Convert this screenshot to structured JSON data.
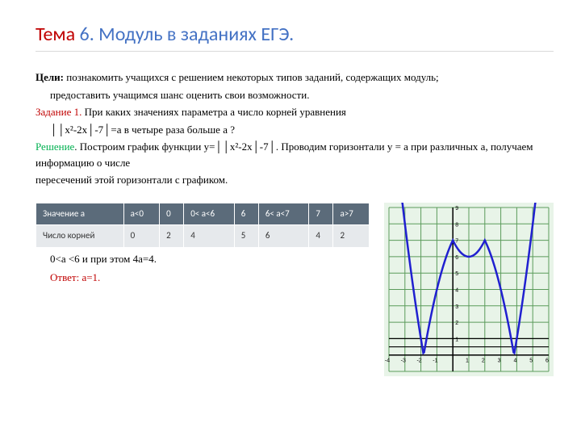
{
  "title": {
    "theme": "Тема",
    "num": "6",
    "rest": ". Модуль в заданиях ЕГЭ."
  },
  "goals": {
    "label": "Цели:",
    "text": " познакомить учащихся с решением некоторых типов заданий, содержащих модуль;",
    "text2": "предоставить учащимся шанс оценить свои возможности."
  },
  "task": {
    "label": "Задание 1.",
    "text": " При каких значениях параметра a число корней уравнения",
    "eq": "││x²-2x│-7│=a   в  четыре  раза больше a ?"
  },
  "solution": {
    "label": "Решение",
    "text": ". Построим график функции y=││x²-2x│-7│. Проводим горизонтали  y = a при различных a, получаем информацию о  числе",
    "text2": "пересечений этой горизонтали с графиком."
  },
  "table": {
    "header": [
      "Значение a",
      "a<0",
      "0",
      "0< a<6",
      "6",
      "6< a<7",
      "7",
      "a>7"
    ],
    "row_label": "Число корней",
    "row": [
      "0",
      "2",
      "4",
      "5",
      "6",
      "4",
      "2"
    ]
  },
  "after_table": "0<a <6 и при этом 4a=4.",
  "answer": {
    "label": "Ответ:",
    "value": "  a=1."
  },
  "chart": {
    "bg": "#e8f4e8",
    "grid_color": "#5b9b5b",
    "curve_color": "#2020d0",
    "x_range": [
      -4,
      6
    ],
    "y_range": [
      -1,
      9
    ],
    "y_ticks": [
      1,
      2,
      3,
      4,
      5,
      6,
      7,
      8,
      9
    ],
    "x_ticks": [
      -4,
      -3,
      -2,
      -1,
      1,
      2,
      3,
      4,
      5,
      6
    ],
    "hlines_y": [
      0.5,
      1.0
    ]
  }
}
